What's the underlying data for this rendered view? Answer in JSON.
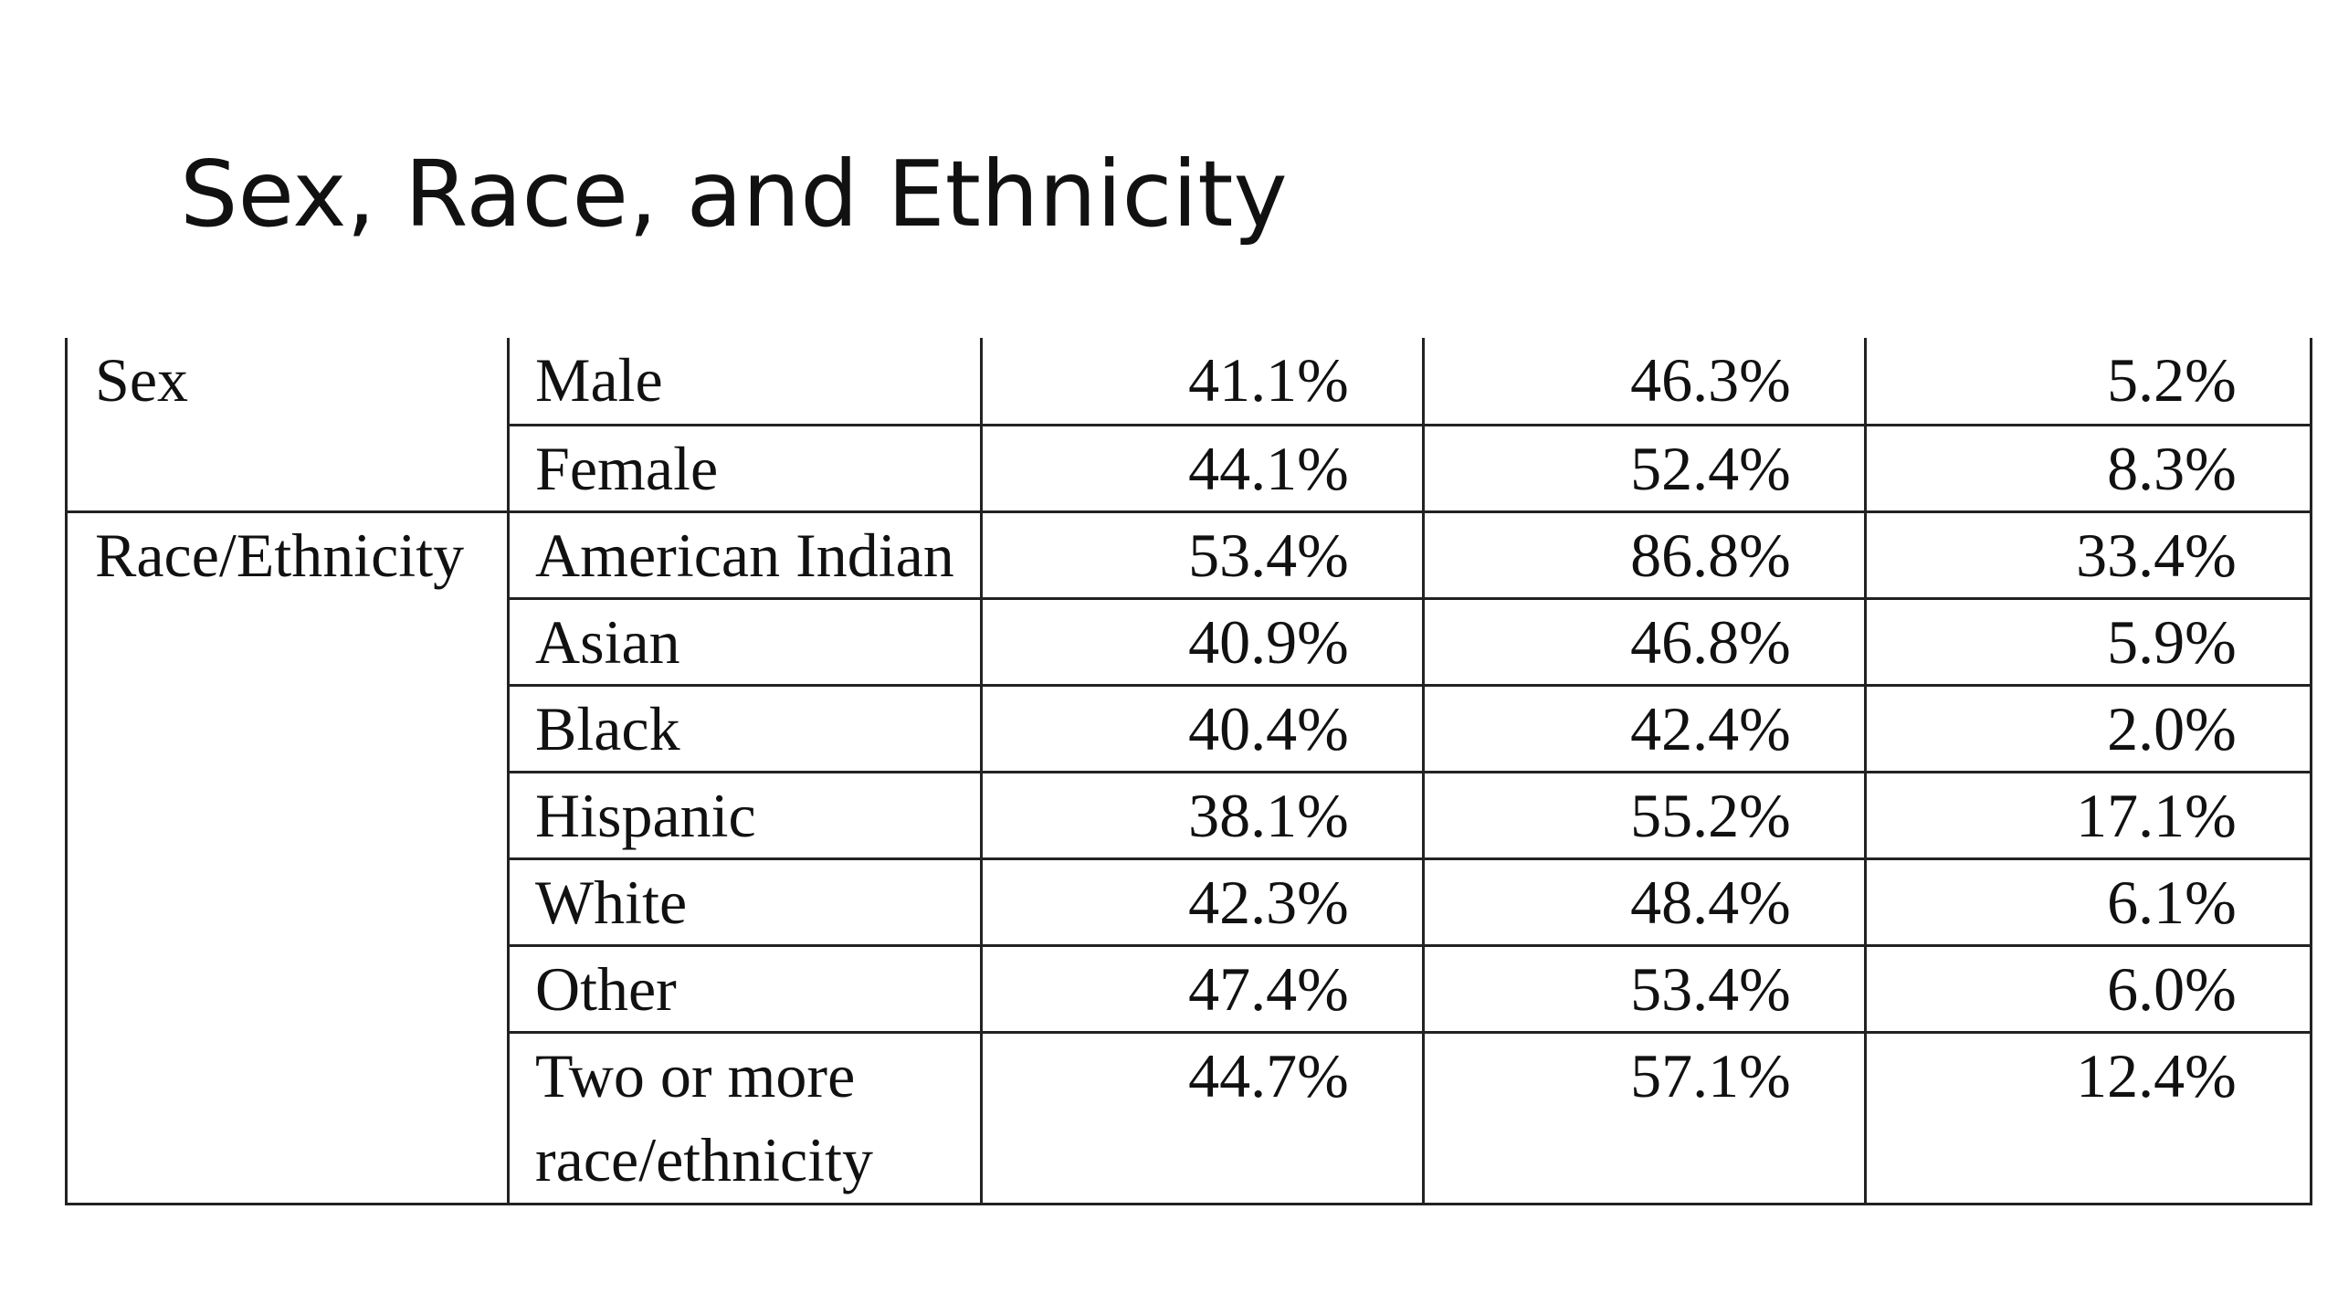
{
  "slide": {
    "title": "Sex, Race, and Ethnicity"
  },
  "table": {
    "groups": {
      "sex": "Sex",
      "race": "Race/Ethnicity"
    },
    "rows": [
      {
        "category": "Male",
        "col1": "41.1%",
        "col2": "46.3%",
        "col3": "5.2%"
      },
      {
        "category": "Female",
        "col1": "44.1%",
        "col2": "52.4%",
        "col3": "8.3%"
      },
      {
        "category": "American Indian",
        "col1": "53.4%",
        "col2": "86.8%",
        "col3": "33.4%"
      },
      {
        "category": "Asian",
        "col1": "40.9%",
        "col2": "46.8%",
        "col3": "5.9%"
      },
      {
        "category": "Black",
        "col1": "40.4%",
        "col2": "42.4%",
        "col3": "2.0%"
      },
      {
        "category": "Hispanic",
        "col1": "38.1%",
        "col2": "55.2%",
        "col3": "17.1%"
      },
      {
        "category": "White",
        "col1": "42.3%",
        "col2": "48.4%",
        "col3": "6.1%"
      },
      {
        "category": "Other",
        "col1": "47.4%",
        "col2": "53.4%",
        "col3": "6.0%"
      },
      {
        "category": "Two or more race/ethnicity",
        "col1": "44.7%",
        "col2": "57.1%",
        "col3": "12.4%"
      }
    ]
  }
}
